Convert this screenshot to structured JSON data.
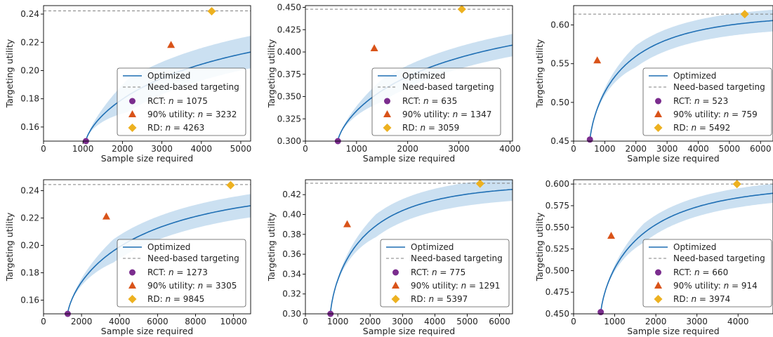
{
  "legend_labels": {
    "optimized": "Optimized",
    "need_based": "Need-based targeting"
  },
  "colors": {
    "line": "#1f6fb4",
    "band": "#b9d5ec",
    "hline": "#808080",
    "rct": "#7b2d8e",
    "utility90": "#d95319",
    "rd": "#edb120"
  },
  "chart_data": [
    {
      "type": "line",
      "xlabel": "Sample size required",
      "ylabel": "Targeting utility",
      "xlim": [
        0,
        5250
      ],
      "ylim": [
        0.15,
        0.246
      ],
      "xticks": [
        0,
        1000,
        2000,
        3000,
        4000,
        5000
      ],
      "yticks": [
        0.16,
        0.18,
        0.2,
        0.22,
        0.24
      ],
      "ytick_labels": [
        "0.16",
        "0.18",
        "0.20",
        "0.22",
        "0.24"
      ],
      "need_based": 0.2423,
      "curve": {
        "x0": 1075,
        "y_min": 0.15,
        "asymptote": 0.2423,
        "k": 0.00047,
        "band": 0.0115
      },
      "markers": {
        "rct": {
          "label": "RCT: n = 1075",
          "x": 1075,
          "y": 0.15
        },
        "utility90": {
          "label": "90% utility: n = 3232",
          "x": 3232,
          "y": 0.218
        },
        "rd": {
          "label": "RD: n = 4263",
          "x": 4263,
          "y": 0.242
        }
      }
    },
    {
      "type": "line",
      "xlabel": "Sample size required",
      "ylabel": "Targeting utility",
      "xlim": [
        0,
        4050
      ],
      "ylim": [
        0.3,
        0.452
      ],
      "xticks": [
        0,
        1000,
        2000,
        3000,
        4000
      ],
      "yticks": [
        0.3,
        0.325,
        0.35,
        0.375,
        0.4,
        0.425,
        0.45
      ],
      "ytick_labels": [
        "0.300",
        "0.325",
        "0.350",
        "0.375",
        "0.400",
        "0.425",
        "0.450"
      ],
      "need_based": 0.448,
      "curve": {
        "x0": 635,
        "y_min": 0.3,
        "asymptote": 0.448,
        "k": 0.00066,
        "band": 0.0125
      },
      "markers": {
        "rct": {
          "label": "RCT: n = 635",
          "x": 635,
          "y": 0.3
        },
        "utility90": {
          "label": "90% utility: n = 1347",
          "x": 1347,
          "y": 0.404
        },
        "rd": {
          "label": "RD: n = 3059",
          "x": 3059,
          "y": 0.448
        }
      }
    },
    {
      "type": "line",
      "xlabel": "Sample size required",
      "ylabel": "Targeting utility",
      "xlim": [
        0,
        6400
      ],
      "ylim": [
        0.45,
        0.625
      ],
      "xticks": [
        0,
        1000,
        2000,
        3000,
        4000,
        5000,
        6000
      ],
      "yticks": [
        0.45,
        0.5,
        0.55,
        0.6
      ],
      "ytick_labels": [
        "0.45",
        "0.50",
        "0.55",
        "0.60"
      ],
      "need_based": 0.614,
      "curve": {
        "x0": 523,
        "y_min": 0.45,
        "asymptote": 0.614,
        "k": 0.0009,
        "band": 0.014
      },
      "markers": {
        "rct": {
          "label": "RCT: n = 523",
          "x": 523,
          "y": 0.452
        },
        "utility90": {
          "label": "90% utility: n = 759",
          "x": 759,
          "y": 0.554
        },
        "rd": {
          "label": "RD: n = 5492",
          "x": 5492,
          "y": 0.614
        }
      }
    },
    {
      "type": "line",
      "xlabel": "Sample size required",
      "ylabel": "Targeting utility",
      "xlim": [
        0,
        10900
      ],
      "ylim": [
        0.15,
        0.248
      ],
      "xticks": [
        0,
        2000,
        4000,
        6000,
        8000,
        10000
      ],
      "yticks": [
        0.16,
        0.18,
        0.2,
        0.22,
        0.24
      ],
      "ytick_labels": [
        "0.16",
        "0.18",
        "0.20",
        "0.22",
        "0.24"
      ],
      "need_based": 0.2445,
      "curve": {
        "x0": 1273,
        "y_min": 0.15,
        "asymptote": 0.2445,
        "k": 0.00033,
        "band": 0.0085
      },
      "markers": {
        "rct": {
          "label": "RCT: n = 1273",
          "x": 1273,
          "y": 0.15
        },
        "utility90": {
          "label": "90% utility: n = 3305",
          "x": 3305,
          "y": 0.221
        },
        "rd": {
          "label": "RD: n = 9845",
          "x": 9845,
          "y": 0.244
        }
      }
    },
    {
      "type": "line",
      "xlabel": "Sample size required",
      "ylabel": "Targeting utility",
      "xlim": [
        0,
        6400
      ],
      "ylim": [
        0.3,
        0.435
      ],
      "xticks": [
        0,
        1000,
        2000,
        3000,
        4000,
        5000,
        6000
      ],
      "yticks": [
        0.3,
        0.32,
        0.34,
        0.36,
        0.38,
        0.4,
        0.42
      ],
      "ytick_labels": [
        "0.30",
        "0.32",
        "0.34",
        "0.36",
        "0.38",
        "0.40",
        "0.42"
      ],
      "need_based": 0.4315,
      "curve": {
        "x0": 775,
        "y_min": 0.3,
        "asymptote": 0.4315,
        "k": 0.00095,
        "band": 0.0115
      },
      "markers": {
        "rct": {
          "label": "RCT: n = 775",
          "x": 775,
          "y": 0.3
        },
        "utility90": {
          "label": "90% utility: n = 1291",
          "x": 1291,
          "y": 0.39
        },
        "rd": {
          "label": "RD: n = 5397",
          "x": 5397,
          "y": 0.431
        }
      }
    },
    {
      "type": "line",
      "xlabel": "Sample size required",
      "ylabel": "Targeting utility",
      "xlim": [
        0,
        4850
      ],
      "ylim": [
        0.45,
        0.605
      ],
      "xticks": [
        0,
        1000,
        2000,
        3000,
        4000
      ],
      "yticks": [
        0.45,
        0.475,
        0.5,
        0.525,
        0.55,
        0.575,
        0.6
      ],
      "ytick_labels": [
        "0.450",
        "0.475",
        "0.500",
        "0.525",
        "0.550",
        "0.575",
        "0.600"
      ],
      "need_based": 0.6,
      "curve": {
        "x0": 660,
        "y_min": 0.45,
        "asymptote": 0.6,
        "k": 0.0011,
        "band": 0.011
      },
      "markers": {
        "rct": {
          "label": "RCT: n = 660",
          "x": 660,
          "y": 0.452
        },
        "utility90": {
          "label": "90% utility: n = 914",
          "x": 914,
          "y": 0.54
        },
        "rd": {
          "label": "RD: n = 3974",
          "x": 3974,
          "y": 0.6
        }
      }
    }
  ]
}
